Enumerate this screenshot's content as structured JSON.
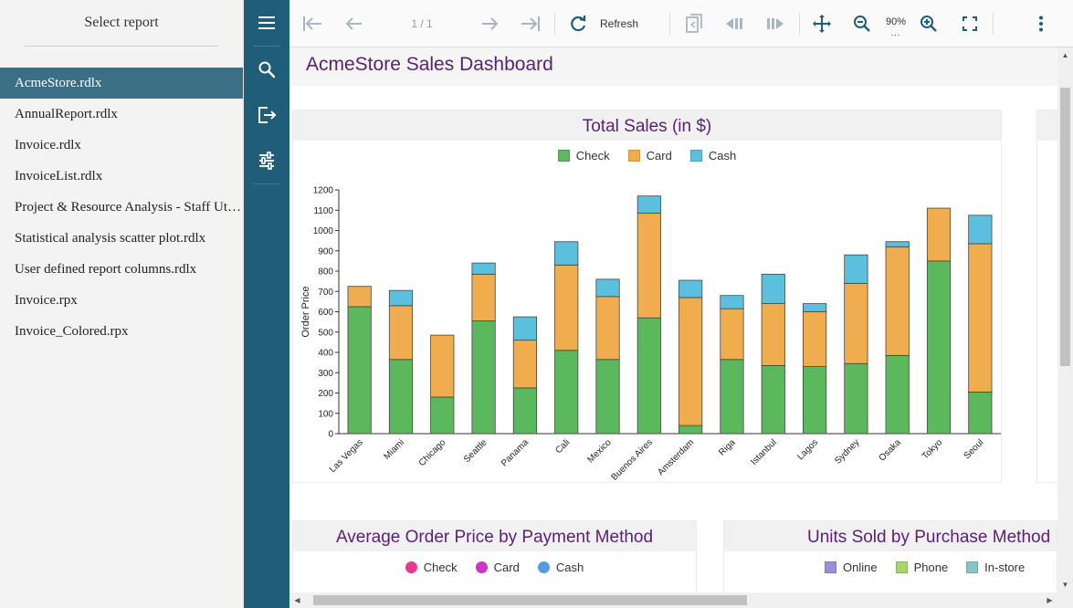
{
  "report_panel": {
    "title": "Select report",
    "items": [
      {
        "label": "AcmeStore.rdlx",
        "active": true
      },
      {
        "label": "AnnualReport.rdlx"
      },
      {
        "label": "Invoice.rdlx"
      },
      {
        "label": "InvoiceList.rdlx"
      },
      {
        "label": "Project & Resource Analysis - Staff Utilization.rdlx"
      },
      {
        "label": "Statistical analysis scatter plot.rdlx"
      },
      {
        "label": "User defined report columns.rdlx"
      },
      {
        "label": "Invoice.rpx"
      },
      {
        "label": "Invoice_Colored.rpx"
      }
    ]
  },
  "rail": {
    "buttons": [
      "menu-icon",
      "search-icon",
      "export-icon",
      "parameters-icon"
    ]
  },
  "toolbar": {
    "page_indicator": "1 / 1",
    "refresh_label": "Refresh",
    "zoom_level": "90%",
    "zoom_dots": "...",
    "icons": [
      "first-page-icon",
      "previous-page-icon",
      "next-page-icon",
      "last-page-icon",
      "refresh-icon",
      "back-to-parent-icon",
      "history-back-icon",
      "history-forward-icon",
      "pan-mode-icon",
      "zoom-out-icon",
      "zoom-in-icon",
      "fullscreen-icon",
      "more-icon"
    ]
  },
  "report": {
    "title": "AcmeStore Sales Dashboard"
  },
  "colors": {
    "check": "#5cb85c",
    "card": "#f0ad4e",
    "cash": "#5bc0de",
    "title": "#5b2175",
    "rail": "#1f5d78",
    "active_item": "#3a6f86"
  },
  "chart_data": [
    {
      "type": "bar",
      "stacked": true,
      "title": "Total Sales (in $)",
      "ylabel": "Order Price",
      "xlabel": "",
      "ylim": [
        0,
        1200
      ],
      "yticks": [
        0,
        100,
        200,
        300,
        400,
        500,
        600,
        700,
        800,
        900,
        1000,
        1100,
        1200
      ],
      "legend_position": "top",
      "categories": [
        "Las Vegas",
        "Miami",
        "Chicago",
        "Seattle",
        "Panama",
        "Cali",
        "Mexico",
        "Buenos Aires",
        "Amsterdam",
        "Riga",
        "Istanbul",
        "Lagos",
        "Sydney",
        "Osaka",
        "Tokyo",
        "Seoul"
      ],
      "series": [
        {
          "name": "Check",
          "color": "#5cb85c",
          "values": [
            625,
            365,
            180,
            555,
            225,
            410,
            365,
            570,
            40,
            365,
            335,
            330,
            345,
            385,
            850,
            205
          ]
        },
        {
          "name": "Card",
          "color": "#f0ad4e",
          "values": [
            100,
            265,
            305,
            230,
            235,
            420,
            310,
            515,
            630,
            250,
            305,
            270,
            395,
            535,
            260,
            730
          ]
        },
        {
          "name": "Cash",
          "color": "#5bc0de",
          "values": [
            0,
            75,
            0,
            55,
            115,
            115,
            85,
            85,
            85,
            65,
            145,
            40,
            140,
            25,
            0,
            140
          ]
        }
      ]
    },
    {
      "type": "bar",
      "title": "Average Order Price by Payment Method",
      "legend_position": "top",
      "series": [
        {
          "name": "Check",
          "color": "#e6388f"
        },
        {
          "name": "Card",
          "color": "#c937c7"
        },
        {
          "name": "Cash",
          "color": "#4f9fe0"
        }
      ]
    },
    {
      "type": "bar",
      "title": "Units Sold by Purchase Method",
      "legend_position": "top",
      "series": [
        {
          "name": "Online",
          "color": "#9b8fd9"
        },
        {
          "name": "Phone",
          "color": "#a5d867"
        },
        {
          "name": "In-store",
          "color": "#8cc4c3"
        }
      ]
    }
  ]
}
